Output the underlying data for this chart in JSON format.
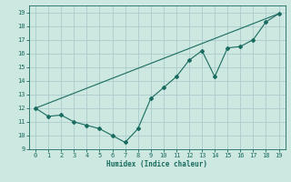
{
  "xlabel": "Humidex (Indice chaleur)",
  "xlim": [
    -0.5,
    19.5
  ],
  "ylim": [
    9,
    19.5
  ],
  "yticks": [
    9,
    10,
    11,
    12,
    13,
    14,
    15,
    16,
    17,
    18,
    19
  ],
  "xticks": [
    0,
    1,
    2,
    3,
    4,
    5,
    6,
    7,
    8,
    9,
    10,
    11,
    12,
    13,
    14,
    15,
    16,
    17,
    18,
    19
  ],
  "bg_color": "#cce8e0",
  "grid_color": "#aacccc",
  "line_color": "#1a6b60",
  "curve1_x": [
    0,
    1,
    2,
    3,
    4,
    5,
    6,
    7,
    8,
    9,
    10,
    11,
    12,
    13,
    14,
    15,
    16,
    17,
    18,
    19
  ],
  "curve1_y": [
    12.0,
    11.4,
    11.5,
    11.0,
    10.75,
    10.5,
    10.0,
    9.5,
    10.5,
    12.7,
    13.5,
    14.3,
    15.5,
    16.2,
    14.3,
    16.4,
    16.5,
    17.0,
    18.3,
    18.9
  ],
  "curve2_x": [
    0,
    19
  ],
  "curve2_y": [
    12.0,
    18.9
  ]
}
